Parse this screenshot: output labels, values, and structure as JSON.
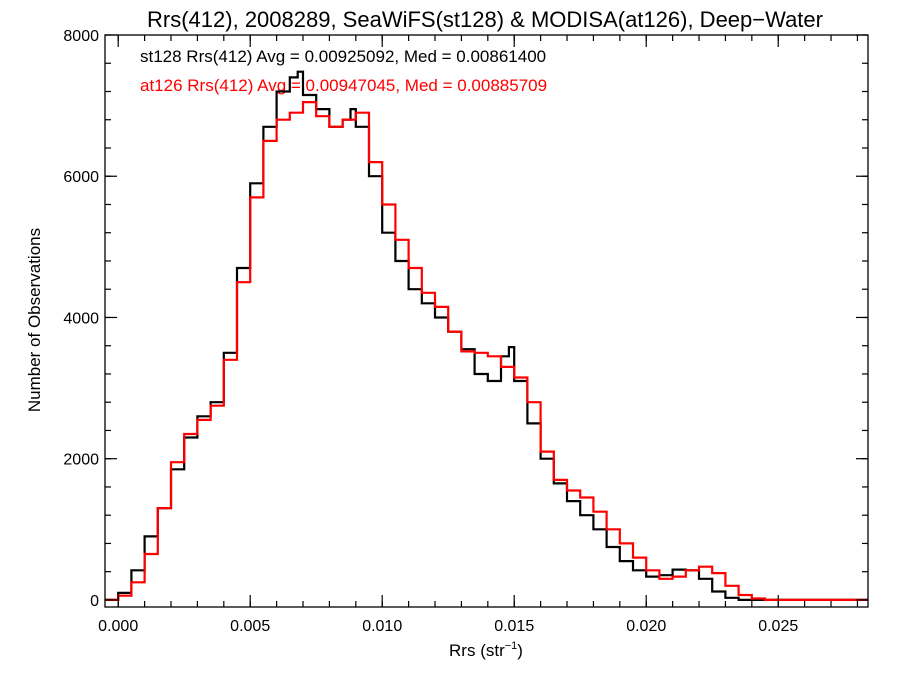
{
  "chart_data": {
    "type": "line",
    "step": true,
    "title": "Rrs(412), 2008289, SeaWiFS(st128) & MODISA(at126), Deep−Water",
    "xlabel_main": "Rrs (str",
    "xlabel_sup": "−1",
    "xlabel_end": ")",
    "ylabel": "Number of Observations",
    "xlim": [
      -0.0005,
      0.0284
    ],
    "ylim": [
      -100,
      8000
    ],
    "xticks": [
      0.0,
      0.005,
      0.01,
      0.015,
      0.02,
      0.025
    ],
    "xtick_labels": [
      "0.000",
      "0.005",
      "0.010",
      "0.015",
      "0.020",
      "0.025"
    ],
    "xminor_step": 0.001,
    "yticks": [
      0,
      2000,
      4000,
      6000,
      8000
    ],
    "ytick_labels": [
      "0",
      "2000",
      "4000",
      "6000",
      "8000"
    ],
    "yminor_step": 400,
    "grid": false,
    "legend_position": "top-left",
    "series": [
      {
        "name": "st128",
        "color": "#000000",
        "legend_text": "st128 Rrs(412) Avg = 0.00925092, Med = 0.00861400",
        "x": [
          -0.0005,
          0.0,
          0.0005,
          0.001,
          0.0015,
          0.002,
          0.0025,
          0.003,
          0.0035,
          0.004,
          0.0045,
          0.005,
          0.0055,
          0.006,
          0.0065,
          0.0068,
          0.007,
          0.0075,
          0.008,
          0.0085,
          0.0088,
          0.009,
          0.0095,
          0.01,
          0.0105,
          0.011,
          0.0115,
          0.012,
          0.0125,
          0.013,
          0.0135,
          0.014,
          0.0145,
          0.0148,
          0.015,
          0.0155,
          0.016,
          0.0165,
          0.017,
          0.0175,
          0.018,
          0.0185,
          0.019,
          0.0195,
          0.02,
          0.0205,
          0.021,
          0.0215,
          0.022,
          0.0225,
          0.023,
          0.0235,
          0.024,
          0.0245,
          0.025,
          0.026,
          0.027,
          0.0284
        ],
        "y": [
          0,
          100,
          420,
          900,
          1300,
          1850,
          2300,
          2600,
          2800,
          3500,
          4700,
          5900,
          6700,
          7200,
          7400,
          7480,
          7150,
          6950,
          6700,
          6800,
          6950,
          6700,
          6000,
          5200,
          4800,
          4400,
          4200,
          4000,
          3800,
          3550,
          3200,
          3100,
          3450,
          3580,
          3100,
          2500,
          2000,
          1650,
          1400,
          1200,
          1000,
          750,
          550,
          420,
          330,
          350,
          430,
          420,
          300,
          120,
          30,
          0,
          0,
          0,
          0,
          0,
          0,
          0
        ]
      },
      {
        "name": "at126",
        "color": "#ff0000",
        "legend_text": "at126 Rrs(412) Avg = 0.00947045, Med = 0.00885709",
        "x": [
          -0.0005,
          0.0,
          0.0005,
          0.001,
          0.0015,
          0.002,
          0.0025,
          0.003,
          0.0035,
          0.004,
          0.0045,
          0.005,
          0.0055,
          0.006,
          0.0065,
          0.007,
          0.0075,
          0.008,
          0.0085,
          0.009,
          0.0095,
          0.01,
          0.0105,
          0.011,
          0.0115,
          0.012,
          0.0125,
          0.013,
          0.0135,
          0.014,
          0.0145,
          0.015,
          0.0155,
          0.016,
          0.0165,
          0.017,
          0.0175,
          0.018,
          0.0185,
          0.019,
          0.0195,
          0.02,
          0.0205,
          0.021,
          0.0215,
          0.022,
          0.0225,
          0.023,
          0.0235,
          0.024,
          0.0245,
          0.025,
          0.026,
          0.027,
          0.0284
        ],
        "y": [
          0,
          60,
          250,
          650,
          1300,
          1950,
          2350,
          2550,
          2750,
          3400,
          4500,
          5700,
          6500,
          6800,
          6900,
          7050,
          6850,
          6700,
          6800,
          6900,
          6200,
          5600,
          5100,
          4700,
          4350,
          4150,
          3800,
          3520,
          3500,
          3450,
          3300,
          3150,
          2800,
          2100,
          1700,
          1550,
          1450,
          1250,
          1000,
          800,
          600,
          420,
          300,
          330,
          420,
          470,
          380,
          200,
          70,
          20,
          0,
          0,
          0,
          0,
          0
        ]
      }
    ]
  }
}
